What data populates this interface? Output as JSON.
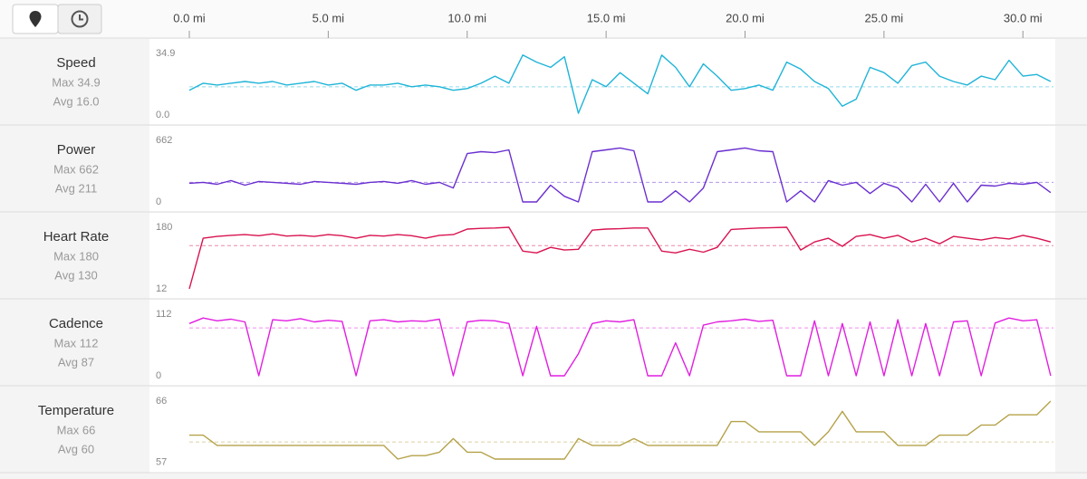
{
  "chart_data": [
    {
      "type": "line",
      "title": "Speed",
      "annotations": [
        {
          "value": 34.9,
          "label": "Max 34.9"
        },
        {
          "value": 16.0,
          "label": "Avg 16.0"
        }
      ],
      "xlim": [
        0,
        31.1
      ],
      "xticks": [
        {
          "value": 0,
          "label": "0.0 mi"
        },
        {
          "value": 5,
          "label": "5.0 mi"
        },
        {
          "value": 10,
          "label": "10.0 mi"
        },
        {
          "value": 15,
          "label": "15.0 mi"
        },
        {
          "value": 20,
          "label": "20.0 mi"
        },
        {
          "value": 25,
          "label": "25.0 mi"
        },
        {
          "value": 30,
          "label": "30.0 mi"
        }
      ],
      "ylim": [
        -4.1,
        42.6
      ],
      "yticks": [
        34.9,
        {
          "value": 0,
          "label": "0.0"
        }
      ],
      "x": [
        0,
        0.5,
        1,
        1.5,
        2,
        2.5,
        3,
        3.5,
        4,
        4.5,
        5,
        5.5,
        6,
        6.5,
        7,
        7.5,
        8,
        8.5,
        9,
        9.5,
        10,
        10.5,
        11,
        11.5,
        12,
        12.5,
        13,
        13.5,
        14,
        14.5,
        15,
        15.5,
        16,
        16.5,
        17,
        17.5,
        18,
        18.5,
        19,
        19.5,
        20,
        20.5,
        21,
        21.5,
        22,
        22.5,
        23,
        23.5,
        24,
        24.5,
        25,
        25.5,
        26,
        26.5,
        27,
        27.5,
        28,
        28.5,
        29,
        29.5,
        30,
        30.5,
        31
      ],
      "series": [
        {
          "color": "#1fb4d8",
          "values": [
            14,
            18,
            17,
            18,
            19,
            18,
            19,
            17,
            18,
            19,
            17,
            18,
            14,
            17,
            17,
            18,
            16,
            17,
            16,
            14,
            15,
            18,
            22,
            18,
            34,
            30,
            27,
            33,
            1,
            20,
            16,
            24,
            18,
            12,
            34,
            27,
            16,
            29,
            22,
            14,
            15,
            17,
            14,
            30,
            26,
            19,
            15,
            5,
            9,
            27,
            24,
            18,
            28,
            30,
            22,
            19,
            17,
            22,
            20,
            31,
            22,
            23,
            19
          ]
        }
      ]
    },
    {
      "type": "line",
      "title": "Power",
      "annotations": [
        {
          "value": 662,
          "label": "Max 662"
        },
        {
          "value": 211,
          "label": "Avg 211"
        }
      ],
      "xlim": [
        0,
        31.1
      ],
      "ylim": [
        -78,
        808
      ],
      "yticks": [
        662,
        0
      ],
      "x": [
        0,
        0.5,
        1,
        1.5,
        2,
        2.5,
        3,
        3.5,
        4,
        4.5,
        5,
        5.5,
        6,
        6.5,
        7,
        7.5,
        8,
        8.5,
        9,
        9.5,
        10,
        10.5,
        11,
        11.5,
        12,
        12.5,
        13,
        13.5,
        14,
        14.5,
        15,
        15.5,
        16,
        16.5,
        17,
        17.5,
        18,
        18.5,
        19,
        19.5,
        20,
        20.5,
        21,
        21.5,
        22,
        22.5,
        23,
        23.5,
        24,
        24.5,
        25,
        25.5,
        26,
        26.5,
        27,
        27.5,
        28,
        28.5,
        29,
        29.5,
        30,
        30.5,
        31
      ],
      "series": [
        {
          "color": "#6a2fd0",
          "values": [
            200,
            210,
            190,
            230,
            180,
            220,
            210,
            200,
            190,
            220,
            210,
            200,
            190,
            210,
            220,
            200,
            230,
            190,
            210,
            150,
            520,
            540,
            530,
            560,
            0,
            0,
            180,
            60,
            0,
            540,
            560,
            580,
            550,
            0,
            0,
            120,
            0,
            150,
            540,
            560,
            580,
            550,
            540,
            0,
            120,
            0,
            230,
            180,
            210,
            90,
            200,
            150,
            0,
            190,
            0,
            200,
            0,
            180,
            170,
            200,
            190,
            210,
            100
          ]
        }
      ]
    },
    {
      "type": "line",
      "title": "Heart Rate",
      "annotations": [
        {
          "value": 180,
          "label": "Max 180"
        },
        {
          "value": 130,
          "label": "Avg 130"
        }
      ],
      "xlim": [
        0,
        31.1
      ],
      "ylim": [
        -7.8,
        217
      ],
      "yticks": [
        180,
        12
      ],
      "x": [
        0,
        0.5,
        1,
        1.5,
        2,
        2.5,
        3,
        3.5,
        4,
        4.5,
        5,
        5.5,
        6,
        6.5,
        7,
        7.5,
        8,
        8.5,
        9,
        9.5,
        10,
        10.5,
        11,
        11.5,
        12,
        12.5,
        13,
        13.5,
        14,
        14.5,
        15,
        15.5,
        16,
        16.5,
        17,
        17.5,
        18,
        18.5,
        19,
        19.5,
        20,
        20.5,
        21,
        21.5,
        22,
        22.5,
        23,
        23.5,
        24,
        24.5,
        25,
        25.5,
        26,
        26.5,
        27,
        27.5,
        28,
        28.5,
        29,
        29.5,
        30,
        30.5,
        31
      ],
      "series": [
        {
          "color": "#d81350",
          "values": [
            12,
            150,
            155,
            158,
            160,
            157,
            162,
            156,
            158,
            155,
            160,
            157,
            150,
            158,
            156,
            160,
            157,
            150,
            158,
            160,
            175,
            177,
            178,
            180,
            115,
            110,
            125,
            118,
            120,
            172,
            175,
            176,
            178,
            178,
            115,
            110,
            120,
            112,
            125,
            174,
            176,
            178,
            179,
            180,
            118,
            140,
            150,
            128,
            155,
            160,
            150,
            158,
            140,
            150,
            135,
            155,
            150,
            145,
            152,
            148,
            158,
            150,
            140
          ]
        }
      ]
    },
    {
      "type": "line",
      "title": "Cadence",
      "annotations": [
        {
          "value": 112,
          "label": "Max 112"
        },
        {
          "value": 87,
          "label": "Avg 87"
        }
      ],
      "xlim": [
        0,
        31.1
      ],
      "ylim": [
        -13.2,
        136.7
      ],
      "yticks": [
        112,
        0
      ],
      "x": [
        0,
        0.5,
        1,
        1.5,
        2,
        2.5,
        3,
        3.5,
        4,
        4.5,
        5,
        5.5,
        6,
        6.5,
        7,
        7.5,
        8,
        8.5,
        9,
        9.5,
        10,
        10.5,
        11,
        11.5,
        12,
        12.5,
        13,
        13.5,
        14,
        14.5,
        15,
        15.5,
        16,
        16.5,
        17,
        17.5,
        18,
        18.5,
        19,
        19.5,
        20,
        20.5,
        21,
        21.5,
        22,
        22.5,
        23,
        23.5,
        24,
        24.5,
        25,
        25.5,
        26,
        26.5,
        27,
        27.5,
        28,
        28.5,
        29,
        29.5,
        30,
        30.5,
        31
      ],
      "series": [
        {
          "color": "#e11ee0",
          "values": [
            95,
            105,
            100,
            103,
            98,
            0,
            102,
            100,
            104,
            98,
            101,
            99,
            0,
            100,
            102,
            98,
            100,
            99,
            103,
            0,
            98,
            101,
            100,
            95,
            0,
            90,
            0,
            0,
            40,
            95,
            100,
            98,
            102,
            0,
            0,
            60,
            0,
            92,
            98,
            100,
            103,
            99,
            101,
            0,
            0,
            100,
            0,
            95,
            0,
            98,
            0,
            102,
            0,
            95,
            0,
            98,
            100,
            0,
            96,
            105,
            100,
            102,
            0
          ]
        }
      ]
    },
    {
      "type": "line",
      "title": "Temperature",
      "annotations": [
        {
          "value": 66,
          "label": "Max 66"
        },
        {
          "value": 60,
          "label": "Avg 60"
        }
      ],
      "xlim": [
        0,
        31.1
      ],
      "ylim": [
        55.9,
        68
      ],
      "yticks": [
        66,
        57
      ],
      "x": [
        0,
        0.5,
        1,
        1.5,
        2,
        2.5,
        3,
        3.5,
        4,
        4.5,
        5,
        5.5,
        6,
        6.5,
        7,
        7.5,
        8,
        8.5,
        9,
        9.5,
        10,
        10.5,
        11,
        11.5,
        12,
        12.5,
        13,
        13.5,
        14,
        14.5,
        15,
        15.5,
        16,
        16.5,
        17,
        17.5,
        18,
        18.5,
        19,
        19.5,
        20,
        20.5,
        21,
        21.5,
        22,
        22.5,
        23,
        23.5,
        24,
        24.5,
        25,
        25.5,
        26,
        26.5,
        27,
        27.5,
        28,
        28.5,
        29,
        29.5,
        30,
        30.5,
        31
      ],
      "series": [
        {
          "color": "#b5a24a",
          "values": [
            61,
            61,
            59.5,
            59.5,
            59.5,
            59.5,
            59.5,
            59.5,
            59.5,
            59.5,
            59.5,
            59.5,
            59.5,
            59.5,
            59.5,
            57.5,
            58,
            58,
            58.5,
            60.5,
            58.5,
            58.5,
            57.5,
            57.5,
            57.5,
            57.5,
            57.5,
            57.5,
            60.5,
            59.5,
            59.5,
            59.5,
            60.5,
            59.5,
            59.5,
            59.5,
            59.5,
            59.5,
            59.5,
            63,
            63,
            61.5,
            61.5,
            61.5,
            61.5,
            59.5,
            61.5,
            64.5,
            61.5,
            61.5,
            61.5,
            59.5,
            59.5,
            59.5,
            61,
            61,
            61,
            62.5,
            62.5,
            64,
            64,
            64,
            66
          ]
        }
      ]
    }
  ]
}
